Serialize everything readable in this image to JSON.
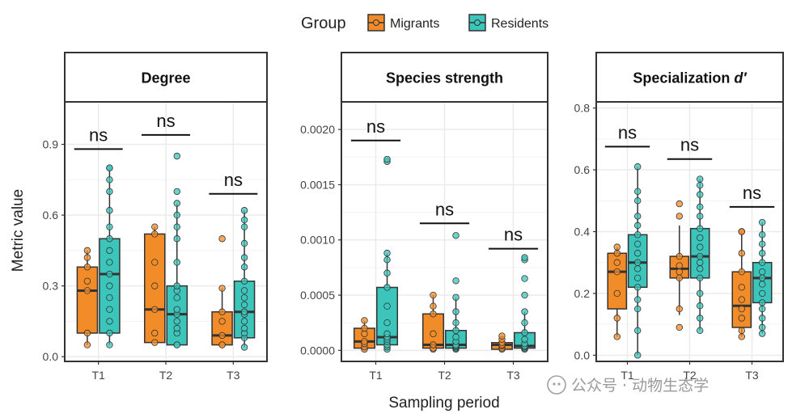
{
  "legend": {
    "title": "Group",
    "items": [
      {
        "label": "Migrants",
        "color": "#F28C28"
      },
      {
        "label": "Residents",
        "color": "#3CC6BB"
      }
    ]
  },
  "xlabel": "Sampling period",
  "ylabel": "Metric value",
  "sig_label": "ns",
  "watermark": "公众号 · 动物生态学",
  "colors": {
    "migrants": "#F28C28",
    "residents": "#3CC6BB",
    "outline": "#333333",
    "strip": "#ffffff",
    "grid": "#ebebeb"
  },
  "chart_data": [
    {
      "type": "boxplot",
      "title": "Degree",
      "title_italic_suffix": "",
      "categories": [
        "T1",
        "T2",
        "T3"
      ],
      "ylim": [
        -0.02,
        1.08
      ],
      "yticks": [
        0.0,
        0.3,
        0.6,
        0.9
      ],
      "ytick_labels": [
        "0.0",
        "0.3",
        "0.6",
        "0.9"
      ],
      "significance": [
        {
          "category": "T1",
          "y": 0.88,
          "label": "ns"
        },
        {
          "category": "T2",
          "y": 0.94,
          "label": "ns"
        },
        {
          "category": "T3",
          "y": 0.69,
          "label": "ns"
        }
      ],
      "series": [
        {
          "name": "Migrants",
          "boxes": [
            {
              "min": 0.05,
              "q1": 0.1,
              "median": 0.28,
              "q3": 0.38,
              "max": 0.45
            },
            {
              "min": 0.06,
              "q1": 0.06,
              "median": 0.2,
              "q3": 0.52,
              "max": 0.55
            },
            {
              "min": 0.05,
              "q1": 0.05,
              "median": 0.09,
              "q3": 0.19,
              "max": 0.29
            }
          ],
          "points": [
            [
              0.05,
              0.1,
              0.28,
              0.32,
              0.38,
              0.42,
              0.45
            ],
            [
              0.06,
              0.1,
              0.2,
              0.3,
              0.4,
              0.52,
              0.55
            ],
            [
              0.05,
              0.05,
              0.09,
              0.15,
              0.19,
              0.29,
              0.5
            ]
          ]
        },
        {
          "name": "Residents",
          "boxes": [
            {
              "min": 0.05,
              "q1": 0.1,
              "median": 0.35,
              "q3": 0.5,
              "max": 0.8
            },
            {
              "min": 0.05,
              "q1": 0.05,
              "median": 0.18,
              "q3": 0.3,
              "max": 0.65
            },
            {
              "min": 0.04,
              "q1": 0.08,
              "median": 0.19,
              "q3": 0.32,
              "max": 0.62
            }
          ],
          "points": [
            [
              0.05,
              0.1,
              0.15,
              0.2,
              0.25,
              0.3,
              0.35,
              0.4,
              0.45,
              0.5,
              0.55,
              0.62,
              0.7,
              0.75,
              0.8,
              0.8
            ],
            [
              0.05,
              0.05,
              0.1,
              0.12,
              0.15,
              0.18,
              0.2,
              0.25,
              0.28,
              0.3,
              0.4,
              0.5,
              0.55,
              0.6,
              0.65,
              0.7,
              0.85
            ],
            [
              0.04,
              0.08,
              0.1,
              0.12,
              0.15,
              0.18,
              0.19,
              0.22,
              0.25,
              0.28,
              0.32,
              0.38,
              0.42,
              0.48,
              0.55,
              0.58,
              0.62
            ]
          ]
        }
      ]
    },
    {
      "type": "boxplot",
      "title": "Species strength",
      "title_italic_suffix": "",
      "categories": [
        "T1",
        "T2",
        "T3"
      ],
      "ylim": [
        -0.0001,
        0.00225
      ],
      "yticks": [
        0.0,
        0.0005,
        0.001,
        0.0015,
        0.002
      ],
      "ytick_labels": [
        "0.0000",
        "0.0005",
        "0.0010",
        "0.0015",
        "0.0020"
      ],
      "significance": [
        {
          "category": "T1",
          "y": 0.0019,
          "label": "ns"
        },
        {
          "category": "T2",
          "y": 0.00115,
          "label": "ns"
        },
        {
          "category": "T3",
          "y": 0.00092,
          "label": "ns"
        }
      ],
      "series": [
        {
          "name": "Migrants",
          "boxes": [
            {
              "min": 1e-05,
              "q1": 2e-05,
              "median": 8e-05,
              "q3": 0.0002,
              "max": 0.00027
            },
            {
              "min": 1e-05,
              "q1": 2e-05,
              "median": 5e-05,
              "q3": 0.00033,
              "max": 0.0005
            },
            {
              "min": 1e-05,
              "q1": 1e-05,
              "median": 5e-05,
              "q3": 7e-05,
              "max": 0.00013
            }
          ],
          "points": [
            [
              1e-05,
              3e-05,
              6e-05,
              8e-05,
              0.00015,
              0.0002,
              0.00027
            ],
            [
              1e-05,
              2e-05,
              5e-05,
              0.00015,
              0.00033,
              0.0004,
              0.0005
            ],
            [
              1e-05,
              2e-05,
              4e-05,
              5e-05,
              7e-05,
              0.0001,
              0.00013
            ]
          ]
        },
        {
          "name": "Residents",
          "boxes": [
            {
              "min": 1e-05,
              "q1": 5e-05,
              "median": 0.00012,
              "q3": 0.00057,
              "max": 0.00088
            },
            {
              "min": 1e-05,
              "q1": 2e-05,
              "median": 5e-05,
              "q3": 0.00018,
              "max": 0.00048
            },
            {
              "min": 1e-05,
              "q1": 2e-05,
              "median": 4e-05,
              "q3": 0.00016,
              "max": 0.00035
            }
          ],
          "points": [
            [
              1e-05,
              3e-05,
              5e-05,
              8e-05,
              0.0001,
              0.00012,
              0.00015,
              0.00025,
              0.0004,
              0.00057,
              0.0007,
              0.00082,
              0.00088,
              0.00171,
              0.00173
            ],
            [
              1e-05,
              2e-05,
              3e-05,
              4e-05,
              5e-05,
              8e-05,
              0.00012,
              0.00018,
              0.00025,
              0.00035,
              0.00048,
              0.00063,
              0.00104
            ],
            [
              1e-05,
              2e-05,
              3e-05,
              4e-05,
              6e-05,
              0.0001,
              0.00016,
              0.00025,
              0.00035,
              0.0005,
              0.00065,
              0.00082,
              0.00084
            ]
          ]
        }
      ]
    },
    {
      "type": "boxplot",
      "title": "Specialization ",
      "title_italic_suffix": "d′",
      "categories": [
        "T1",
        "T2",
        "T3"
      ],
      "ylim": [
        -0.02,
        0.82
      ],
      "yticks": [
        0.0,
        0.2,
        0.4,
        0.6,
        0.8
      ],
      "ytick_labels": [
        "0.0",
        "0.2",
        "0.4",
        "0.6",
        "0.8"
      ],
      "significance": [
        {
          "category": "T1",
          "y": 0.675,
          "label": "ns"
        },
        {
          "category": "T2",
          "y": 0.635,
          "label": "ns"
        },
        {
          "category": "T3",
          "y": 0.48,
          "label": "ns"
        }
      ],
      "series": [
        {
          "name": "Migrants",
          "boxes": [
            {
              "min": 0.06,
              "q1": 0.15,
              "median": 0.27,
              "q3": 0.33,
              "max": 0.35
            },
            {
              "min": 0.13,
              "q1": 0.25,
              "median": 0.28,
              "q3": 0.32,
              "max": 0.42
            },
            {
              "min": 0.06,
              "q1": 0.09,
              "median": 0.16,
              "q3": 0.27,
              "max": 0.4
            }
          ],
          "points": [
            [
              0.06,
              0.12,
              0.2,
              0.27,
              0.3,
              0.33,
              0.35
            ],
            [
              0.09,
              0.15,
              0.25,
              0.27,
              0.29,
              0.32,
              0.45,
              0.49
            ],
            [
              0.06,
              0.08,
              0.12,
              0.15,
              0.18,
              0.22,
              0.27,
              0.33,
              0.4,
              0.4
            ]
          ]
        },
        {
          "name": "Residents",
          "boxes": [
            {
              "min": 0.0,
              "q1": 0.22,
              "median": 0.3,
              "q3": 0.39,
              "max": 0.61
            },
            {
              "min": 0.08,
              "q1": 0.25,
              "median": 0.32,
              "q3": 0.41,
              "max": 0.57
            },
            {
              "min": 0.07,
              "q1": 0.17,
              "median": 0.25,
              "q3": 0.3,
              "max": 0.43
            }
          ],
          "points": [
            [
              0.0,
              0.08,
              0.15,
              0.18,
              0.22,
              0.25,
              0.28,
              0.3,
              0.33,
              0.36,
              0.39,
              0.42,
              0.45,
              0.5,
              0.53,
              0.61
            ],
            [
              0.08,
              0.12,
              0.16,
              0.2,
              0.25,
              0.28,
              0.3,
              0.32,
              0.35,
              0.38,
              0.41,
              0.45,
              0.48,
              0.52,
              0.55,
              0.57
            ],
            [
              0.07,
              0.09,
              0.12,
              0.15,
              0.17,
              0.2,
              0.23,
              0.25,
              0.27,
              0.3,
              0.33,
              0.36,
              0.39,
              0.43
            ]
          ]
        }
      ]
    }
  ]
}
